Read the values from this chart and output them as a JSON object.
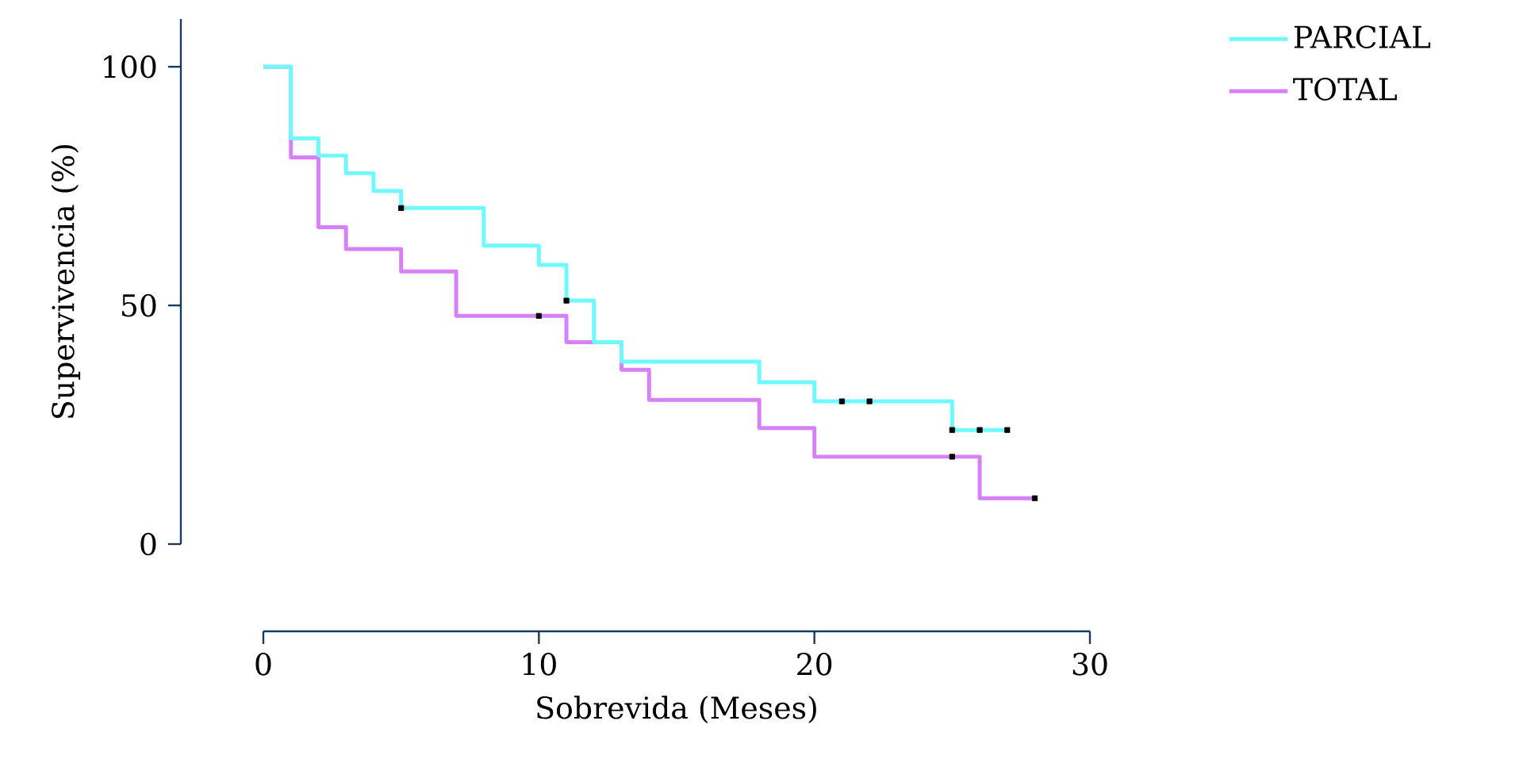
{
  "chart_data": {
    "type": "step",
    "xlabel": "Sobrevida (Meses)",
    "ylabel": "Supervivencia (%)",
    "xlim": [
      0,
      30
    ],
    "ylim": [
      0,
      110
    ],
    "xticks": [
      0,
      10,
      20,
      30
    ],
    "yticks": [
      0,
      50,
      100
    ],
    "legend": "top right",
    "series": [
      {
        "name": "PARCIAL",
        "color": "#6ff9ff",
        "x": [
          0,
          1,
          2,
          3,
          4,
          5,
          8,
          10,
          11,
          12,
          13,
          18,
          20,
          25,
          27
        ],
        "values": [
          100,
          85,
          81.4,
          77.7,
          74,
          70.4,
          62.5,
          58.5,
          51,
          42.3,
          38.2,
          33.9,
          29.9,
          23.9,
          23.9
        ]
      },
      {
        "name": "TOTAL",
        "color": "#d681f8",
        "x": [
          0,
          1,
          2,
          3,
          5,
          7,
          11,
          13,
          14,
          18,
          20,
          26,
          28
        ],
        "values": [
          100,
          81,
          66.4,
          61.8,
          57.1,
          47.8,
          42.3,
          36.5,
          30.2,
          24.3,
          18.3,
          9.6,
          9.6
        ]
      },
      {
        "type": "scatter",
        "color": "#000000",
        "marker": "square",
        "x": [
          5,
          11,
          21,
          22,
          25,
          26,
          27
        ],
        "values": [
          70.4,
          51,
          29.9,
          29.9,
          23.9,
          23.9,
          23.9
        ]
      },
      {
        "type": "scatter",
        "color": "#000000",
        "marker": "square",
        "x": [
          10,
          25,
          28
        ],
        "values": [
          47.8,
          18.3,
          9.6
        ]
      }
    ]
  }
}
